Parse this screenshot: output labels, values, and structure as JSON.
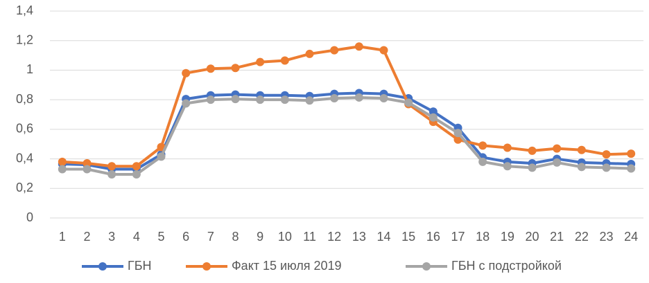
{
  "chart_data": {
    "type": "line",
    "categories": [
      "1",
      "2",
      "3",
      "4",
      "5",
      "6",
      "7",
      "8",
      "9",
      "10",
      "11",
      "12",
      "13",
      "14",
      "15",
      "16",
      "17",
      "18",
      "19",
      "20",
      "21",
      "22",
      "23",
      "24"
    ],
    "series": [
      {
        "name": "ГБН",
        "color": "#4472c4",
        "values": [
          0.365,
          0.36,
          0.33,
          0.33,
          0.43,
          0.805,
          0.83,
          0.835,
          0.83,
          0.83,
          0.825,
          0.84,
          0.845,
          0.84,
          0.81,
          0.72,
          0.61,
          0.41,
          0.38,
          0.37,
          0.4,
          0.375,
          0.37,
          0.365
        ]
      },
      {
        "name": "Факт 15 июля 2019",
        "color": "#ed7d31",
        "values": [
          0.38,
          0.37,
          0.35,
          0.35,
          0.48,
          0.98,
          1.01,
          1.015,
          1.055,
          1.065,
          1.11,
          1.135,
          1.16,
          1.135,
          0.77,
          0.65,
          0.53,
          0.49,
          0.475,
          0.455,
          0.47,
          0.46,
          0.43,
          0.435
        ]
      },
      {
        "name": "ГБН с подстройкой",
        "color": "#a5a5a5",
        "values": [
          0.33,
          0.33,
          0.295,
          0.295,
          0.415,
          0.775,
          0.8,
          0.805,
          0.8,
          0.8,
          0.795,
          0.81,
          0.815,
          0.81,
          0.78,
          0.68,
          0.575,
          0.38,
          0.35,
          0.34,
          0.375,
          0.345,
          0.34,
          0.335
        ]
      }
    ],
    "ylim": [
      0,
      1.4
    ],
    "yticks": [
      0,
      {
        "value": 0.2,
        "label": "0,2"
      },
      {
        "value": 0.4,
        "label": "0,4"
      },
      {
        "value": 0.6,
        "label": "0,6"
      },
      {
        "value": 0.8,
        "label": "0,8"
      },
      1,
      {
        "value": 1.2,
        "label": "1,2"
      },
      {
        "value": 1.4,
        "label": "1,4"
      }
    ],
    "grid": true,
    "legend": "bottom"
  }
}
